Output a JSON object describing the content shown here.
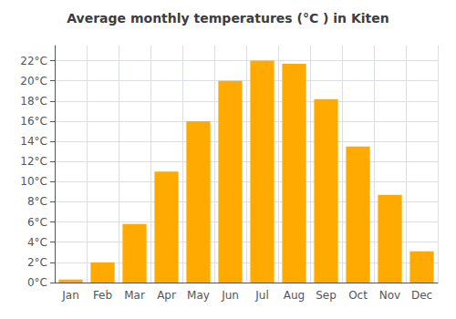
{
  "chart_data": {
    "type": "bar",
    "title": "Average monthly temperatures (°C ) in Kiten",
    "categories": [
      "Jan",
      "Feb",
      "Mar",
      "Apr",
      "May",
      "Jun",
      "Jul",
      "Aug",
      "Sep",
      "Oct",
      "Nov",
      "Dec"
    ],
    "values": [
      0.3,
      2.0,
      5.8,
      11.0,
      16.0,
      20.0,
      22.0,
      21.7,
      18.2,
      13.5,
      8.7,
      3.1
    ],
    "color": "#FFAA00",
    "ylim": [
      0,
      23.5
    ],
    "yticks": [
      {
        "value": 0,
        "label": "0°C"
      },
      {
        "value": 2,
        "label": "2°C"
      },
      {
        "value": 4,
        "label": "4°C"
      },
      {
        "value": 6,
        "label": "6°C"
      },
      {
        "value": 8,
        "label": "8°C"
      },
      {
        "value": 10,
        "label": "10°C"
      },
      {
        "value": 12,
        "label": "12°C"
      },
      {
        "value": 14,
        "label": "14°C"
      },
      {
        "value": 16,
        "label": "16°C"
      },
      {
        "value": 18,
        "label": "18°C"
      },
      {
        "value": 20,
        "label": "20°C"
      },
      {
        "value": 22,
        "label": "22°C"
      }
    ],
    "grid": true
  }
}
